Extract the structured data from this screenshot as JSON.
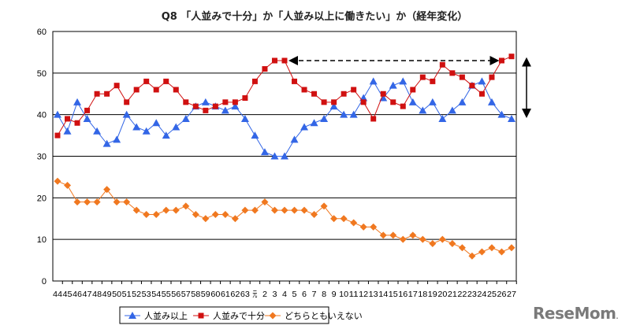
{
  "chart_data": {
    "type": "line",
    "title": "Q8 「人並みで十分」か「人並み以上に働きたい」か（経年変化）",
    "xlabel": "",
    "ylabel": "",
    "ylim": [
      0,
      60
    ],
    "yticks": [
      "0",
      "10",
      "20",
      "30",
      "40",
      "50",
      "60"
    ],
    "grid": true,
    "legend_position": "bottom",
    "categories": [
      "44",
      "45",
      "46",
      "47",
      "48",
      "49",
      "50",
      "51",
      "52",
      "53",
      "54",
      "55",
      "56",
      "57",
      "58",
      "59",
      "60",
      "61",
      "62",
      "63",
      "元",
      "2",
      "3",
      "4",
      "5",
      "6",
      "7",
      "8",
      "9",
      "10",
      "11",
      "12",
      "13",
      "14",
      "15",
      "16",
      "17",
      "18",
      "19",
      "20",
      "21",
      "22",
      "23",
      "24",
      "25",
      "26",
      "27"
    ],
    "series": [
      {
        "name": "人並み以上",
        "color": "#3366e6",
        "marker": "triangle",
        "values": [
          40,
          36,
          43,
          39,
          36,
          33,
          34,
          40,
          37,
          36,
          38,
          35,
          37,
          39,
          42,
          43,
          42,
          41,
          42,
          39,
          35,
          31,
          30,
          30,
          34,
          37,
          38,
          39,
          42,
          40,
          40,
          44,
          48,
          44,
          47,
          48,
          43,
          41,
          43,
          39,
          41,
          43,
          47,
          48,
          43,
          40,
          39
        ]
      },
      {
        "name": "人並みで十分",
        "color": "#d01010",
        "marker": "square",
        "values": [
          35,
          39,
          38,
          41,
          45,
          45,
          47,
          43,
          46,
          48,
          46,
          48,
          46,
          43,
          42,
          41,
          42,
          43,
          43,
          44,
          48,
          51,
          53,
          53,
          48,
          46,
          45,
          43,
          43,
          45,
          46,
          43,
          39,
          45,
          43,
          42,
          46,
          49,
          48,
          52,
          50,
          49,
          47,
          45,
          49,
          53,
          54
        ]
      },
      {
        "name": "どちらともいえない",
        "color": "#f07820",
        "marker": "diamond",
        "values": [
          24,
          23,
          19,
          19,
          19,
          22,
          19,
          19,
          17,
          16,
          16,
          17,
          17,
          18,
          16,
          15,
          16,
          16,
          15,
          17,
          17,
          19,
          17,
          17,
          17,
          17,
          16,
          18,
          15,
          15,
          14,
          13,
          13,
          11,
          11,
          10,
          11,
          10,
          9,
          10,
          9,
          8,
          6,
          7,
          8,
          7,
          8
        ]
      }
    ],
    "annotations": [
      {
        "type": "dashed-double-arrow",
        "from": "4",
        "to": "26",
        "y": 53
      },
      {
        "type": "double-arrow",
        "from_y": 54,
        "to_y": 39,
        "position": "right of plot"
      }
    ]
  },
  "logo": "ReseMom"
}
